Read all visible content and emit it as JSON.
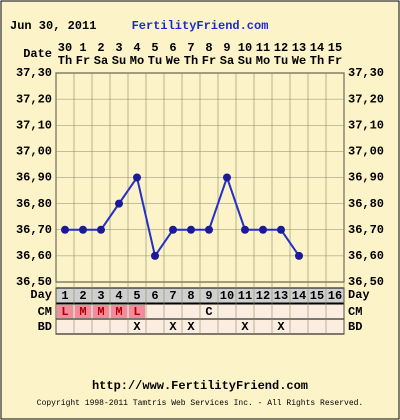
{
  "chart_data": {
    "type": "line",
    "header_date": "Jun 30, 2011",
    "site": "FertilityFriend.com",
    "date_label": "Date",
    "categories": [
      "30",
      "1",
      "2",
      "3",
      "4",
      "5",
      "6",
      "7",
      "8",
      "9",
      "10",
      "11",
      "12",
      "13",
      "14",
      "15"
    ],
    "weekdays": [
      "Th",
      "Fr",
      "Sa",
      "Su",
      "Mo",
      "Tu",
      "We",
      "Th",
      "Fr",
      "Sa",
      "Su",
      "Mo",
      "Tu",
      "We",
      "Th",
      "Fr"
    ],
    "values": [
      36.7,
      36.7,
      36.7,
      36.8,
      36.9,
      36.6,
      36.7,
      36.7,
      36.7,
      36.9,
      36.7,
      36.7,
      36.7,
      36.6,
      null,
      null
    ],
    "color": "#2430c8",
    "ylim": [
      36.5,
      37.3
    ],
    "yticks": [
      {
        "value": 36.5,
        "label": "36,50"
      },
      {
        "value": 36.6,
        "label": "36,60"
      },
      {
        "value": 36.7,
        "label": "36,70"
      },
      {
        "value": 36.8,
        "label": "36,80"
      },
      {
        "value": 36.9,
        "label": "36,90"
      },
      {
        "value": 37.0,
        "label": "37,00"
      },
      {
        "value": 37.1,
        "label": "37,10"
      },
      {
        "value": 37.2,
        "label": "37,20"
      },
      {
        "value": 37.3,
        "label": "37,30"
      }
    ],
    "grid": true,
    "day_label": "Day",
    "days": [
      1,
      2,
      3,
      4,
      5,
      6,
      7,
      8,
      9,
      10,
      11,
      12,
      13,
      14,
      15,
      16
    ],
    "cm_label": "CM",
    "cm": [
      "L",
      "M",
      "M",
      "M",
      "L",
      null,
      null,
      null,
      "C",
      null,
      null,
      null,
      null,
      null,
      null,
      null
    ],
    "bd_label": "BD",
    "bd": [
      null,
      null,
      null,
      null,
      "X",
      null,
      "X",
      "X",
      null,
      null,
      "X",
      null,
      "X",
      null,
      null,
      null
    ],
    "url": "http://www.FertilityFriend.com",
    "copyright": "Copyright 1998-2011 Tamtris Web Services Inc. - All Rights Reserved."
  }
}
